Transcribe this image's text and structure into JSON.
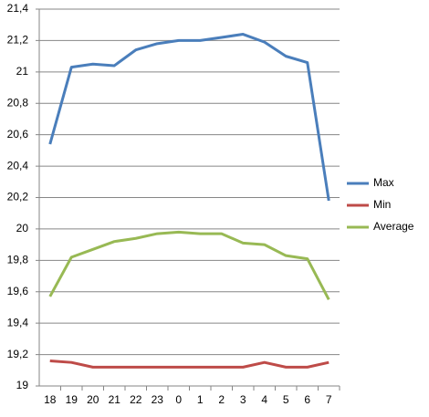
{
  "chart_data": {
    "type": "line",
    "categories": [
      "18",
      "19",
      "20",
      "21",
      "22",
      "23",
      "0",
      "1",
      "2",
      "3",
      "4",
      "5",
      "6",
      "7"
    ],
    "series": [
      {
        "name": "Max",
        "color": "#4a7ebb",
        "values": [
          20.54,
          21.03,
          21.05,
          21.04,
          21.14,
          21.18,
          21.2,
          21.2,
          21.22,
          21.24,
          21.19,
          21.1,
          21.06,
          20.18
        ]
      },
      {
        "name": "Min",
        "color": "#be4b48",
        "values": [
          19.16,
          19.15,
          19.12,
          19.12,
          19.12,
          19.12,
          19.12,
          19.12,
          19.12,
          19.12,
          19.15,
          19.12,
          19.12,
          19.15
        ]
      },
      {
        "name": "Average",
        "color": "#98b954",
        "values": [
          19.57,
          19.82,
          19.87,
          19.92,
          19.94,
          19.97,
          19.98,
          19.97,
          19.97,
          19.91,
          19.9,
          19.83,
          19.81,
          19.55
        ]
      }
    ],
    "ylim": [
      19,
      21.4
    ],
    "yticks": [
      19,
      {
        "value": 19.2,
        "label": "19,2"
      },
      {
        "value": 19.4,
        "label": "19,4"
      },
      {
        "value": 19.6,
        "label": "19,6"
      },
      {
        "value": 19.8,
        "label": "19,8"
      },
      20,
      {
        "value": 20.2,
        "label": "20,2"
      },
      {
        "value": 20.4,
        "label": "20,4"
      },
      {
        "value": 20.6,
        "label": "20,6"
      },
      {
        "value": 20.8,
        "label": "20,8"
      },
      21,
      {
        "value": 21.2,
        "label": "21,2"
      },
      {
        "value": 21.4,
        "label": "21,4"
      }
    ],
    "grid": true,
    "legend": "right"
  }
}
